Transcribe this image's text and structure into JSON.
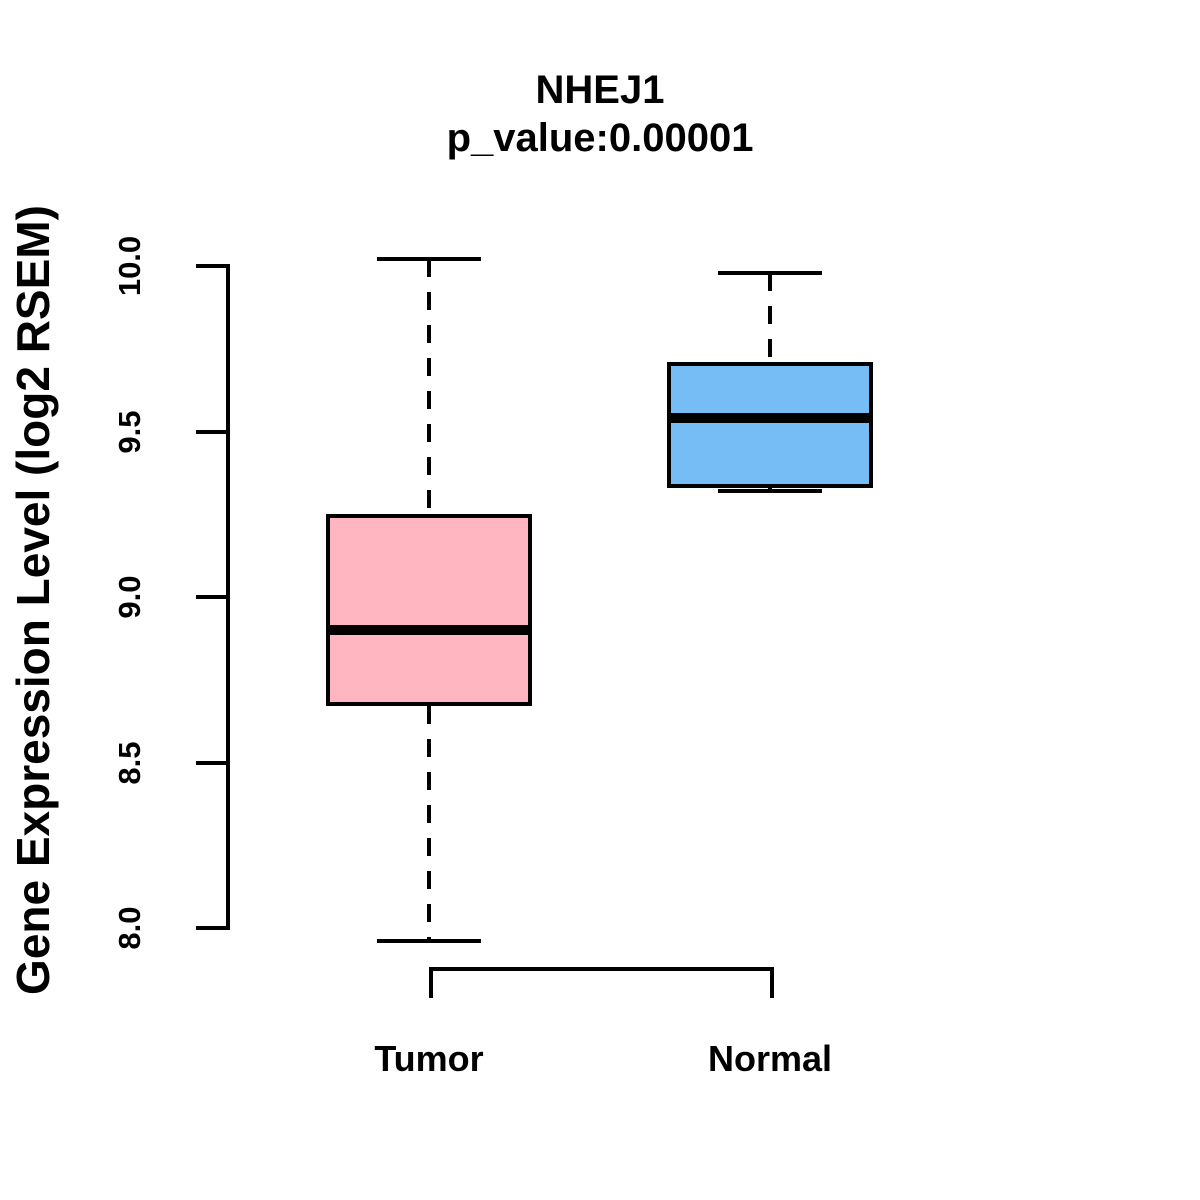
{
  "chart_data": {
    "type": "boxplot",
    "title": "NHEJ1",
    "subtitle": "p_value:0.00001",
    "ylabel": "Gene Expression Level (log2 RSEM)",
    "xlabel": "",
    "ylim": [
      8.0,
      10.0
    ],
    "grid": false,
    "yticks": [
      {
        "label": "8.0",
        "value": 8.0
      },
      {
        "label": "8.5",
        "value": 8.5
      },
      {
        "label": "9.0",
        "value": 9.0
      },
      {
        "label": "9.5",
        "value": 9.5
      },
      {
        "label": "10.0",
        "value": 10.0
      }
    ],
    "groups": [
      {
        "label": "Tumor",
        "color": "#FFB6C1",
        "whisker_low": 7.96,
        "q1": 8.67,
        "median": 8.9,
        "q3": 9.25,
        "whisker_high": 10.02,
        "whisker_style": "dashed"
      },
      {
        "label": "Normal",
        "color": "#76BDF6",
        "whisker_low": 9.32,
        "q1": 9.33,
        "median": 9.54,
        "q3": 9.71,
        "whisker_high": 9.98,
        "whisker_style": "dashed"
      }
    ],
    "line_color": "#000000",
    "background_color": "#FFFFFF"
  }
}
